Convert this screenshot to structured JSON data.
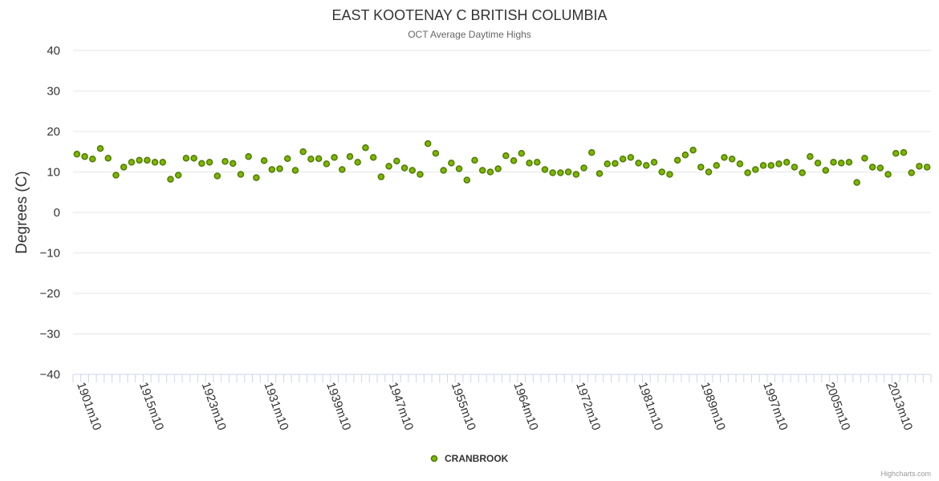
{
  "chart_data": {
    "type": "scatter",
    "title": "EAST KOOTENAY C BRITISH COLUMBIA",
    "subtitle": "OCT Average Daytime Highs",
    "ylabel": "Degrees (C)",
    "xlabel": "",
    "ylim": [
      -40,
      40
    ],
    "y_ticks": [
      "40",
      "30",
      "20",
      "10",
      "0",
      "−10",
      "−20",
      "−30",
      "−40"
    ],
    "x_tick_labels": [
      "1901m10",
      "1915m10",
      "1923m10",
      "1931m10",
      "1939m10",
      "1947m10",
      "1955m10",
      "1964m10",
      "1972m10",
      "1981m10",
      "1989m10",
      "1997m10",
      "2005m10",
      "2013m10"
    ],
    "x_tick_label_index": [
      0,
      8,
      16,
      24,
      32,
      40,
      48,
      56,
      64,
      72,
      80,
      88,
      96,
      104
    ],
    "grid": true,
    "legend_position": "bottom-center",
    "credits": "Highcharts.com",
    "series": [
      {
        "name": "CRANBROOK",
        "color": "#7cb800",
        "marker_border": "#4f7a00",
        "values": [
          14.4,
          13.8,
          13.2,
          15.8,
          13.4,
          9.2,
          11.2,
          12.4,
          12.9,
          12.9,
          12.4,
          12.4,
          8.2,
          9.2,
          13.4,
          13.4,
          12.1,
          12.4,
          9.0,
          12.6,
          12.1,
          9.4,
          13.8,
          8.6,
          12.8,
          10.6,
          10.8,
          13.3,
          10.4,
          15.0,
          13.2,
          13.3,
          12.0,
          13.6,
          10.6,
          13.8,
          12.4,
          16.0,
          13.6,
          8.8,
          11.4,
          12.7,
          11.0,
          10.4,
          9.4,
          17.0,
          14.6,
          10.4,
          12.2,
          10.8,
          8.0,
          12.9,
          10.4,
          10.0,
          10.8,
          14.0,
          12.8,
          14.6,
          12.2,
          12.4,
          10.6,
          9.8,
          9.8,
          10.0,
          9.4,
          11.0,
          14.8,
          9.6,
          12.0,
          12.1,
          13.2,
          13.6,
          12.2,
          11.6,
          12.4,
          10.0,
          9.4,
          12.9,
          14.2,
          15.4,
          11.2,
          10.0,
          11.6,
          13.6,
          13.2,
          12.0,
          9.8,
          10.6,
          11.6,
          11.6,
          12.0,
          12.4,
          11.2,
          9.8,
          13.8,
          12.2,
          10.4,
          12.4,
          12.2,
          12.4,
          7.4,
          13.4,
          11.2,
          11.0,
          9.4,
          14.6,
          14.8,
          9.8,
          11.4,
          11.2
        ]
      }
    ]
  }
}
